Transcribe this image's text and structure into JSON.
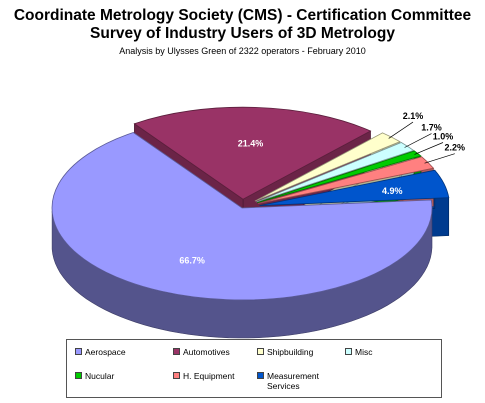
{
  "chart_data": {
    "type": "pie",
    "title_line1": "Coordinate Metrology Society (CMS) - Certification Committee",
    "title_line2": "Survey of Industry Users of 3D Metrology",
    "subtitle": "Analysis by Ulysses Green of 2322 operators  - February 2010",
    "slices": [
      {
        "name": "Aerospace",
        "value": 66.7,
        "label": "66.7%",
        "color": "#9999ff"
      },
      {
        "name": "Automotives",
        "value": 21.4,
        "label": "21.4%",
        "color": "#993366"
      },
      {
        "name": "Shipbuilding",
        "value": 2.1,
        "label": "2.1%",
        "color": "#ffffcc"
      },
      {
        "name": "Misc",
        "value": 1.7,
        "label": "1.7%",
        "color": "#ccffff"
      },
      {
        "name": "Nucular",
        "value": 1.0,
        "label": "1.0%",
        "color": "#00cc00"
      },
      {
        "name": "H. Equipment",
        "value": 2.2,
        "label": "2.2%",
        "color": "#ff8080"
      },
      {
        "name": "Measurement Services",
        "value": 4.9,
        "label": "4.9%",
        "color": "#0055cc"
      }
    ],
    "legend": {
      "placement": "bottom",
      "items": [
        "Aerospace",
        "Automotives",
        "Shipbuilding",
        "Misc",
        "Nucular",
        "H. Equipment",
        "Measurement Services"
      ]
    }
  }
}
